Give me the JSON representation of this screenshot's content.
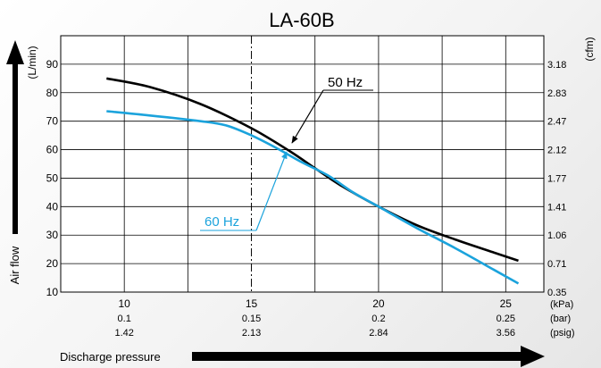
{
  "chart_data": {
    "type": "line",
    "title": "LA-60B",
    "ylabel": "Air flow",
    "ylabel_unit_left": "(L/min)",
    "ylabel_unit_right": "(cfm)",
    "xlabel": "Discharge pressure",
    "x_units": [
      "(kPa)",
      "(bar)",
      "(psig)"
    ],
    "xlim": [
      7.5,
      26.5
    ],
    "ylim": [
      10,
      100
    ],
    "grid": true,
    "x_ticks": [
      {
        "kpa": "10",
        "bar": "0.1",
        "psig": "1.42"
      },
      {
        "kpa": "15",
        "bar": "0.15",
        "psig": "2.13"
      },
      {
        "kpa": "20",
        "bar": "0.2",
        "psig": "2.84"
      },
      {
        "kpa": "25",
        "bar": "0.25",
        "psig": "3.56"
      }
    ],
    "y_ticks_left": [
      "10",
      "20",
      "30",
      "40",
      "50",
      "60",
      "70",
      "80",
      "90"
    ],
    "y_ticks_right": [
      "0.35",
      "0.71",
      "1.06",
      "1.41",
      "1.77",
      "2.12",
      "2.47",
      "2.83",
      "3.18"
    ],
    "series": [
      {
        "name": "50 Hz",
        "color": "#000000",
        "x": [
          9.3,
          11.0,
          13.0,
          15.0,
          16.5,
          17.5,
          18.5,
          20.0,
          21.5,
          23.0,
          24.5,
          25.5
        ],
        "y": [
          85,
          82,
          76,
          67.5,
          59.5,
          53.5,
          47.5,
          40,
          33.5,
          28.5,
          24,
          21
        ]
      },
      {
        "name": "60 Hz",
        "color": "#1ba3dc",
        "x": [
          9.3,
          11.0,
          13.0,
          14.0,
          15.0,
          16.0,
          17.0,
          18.0,
          19.0,
          20.0,
          21.5,
          23.0,
          24.5,
          25.5
        ],
        "y": [
          73.5,
          72,
          70,
          68.5,
          65,
          60.5,
          55.5,
          51,
          45,
          40,
          32.5,
          25.5,
          18,
          13
        ]
      }
    ]
  }
}
